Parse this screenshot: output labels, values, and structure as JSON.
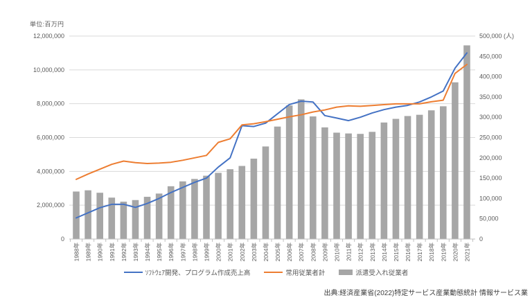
{
  "unit_label": "単位:百万円",
  "source": "出典:経済産業省(2022)特定サービス産業動態統計 情報サービス業",
  "colors": {
    "blue_line": "#4472C4",
    "orange_line": "#ED7D31",
    "gray_bar": "#A6A6A6",
    "gridline": "#D9D9D9",
    "axis_line": "#BFBFBF",
    "axis_text": "#595959"
  },
  "legend": [
    {
      "label": "ｿﾌﾄｳｪｱ開発、プログラム作成売上高",
      "type": "line",
      "color": "#4472C4"
    },
    {
      "label": "常用従業者計",
      "type": "line",
      "color": "#ED7D31"
    },
    {
      "label": "派遣受入れ従業者",
      "type": "bar",
      "color": "#A6A6A6"
    }
  ],
  "chart_data": {
    "type": "combo-bar-line",
    "grid": true,
    "legend_position": "bottom",
    "categories": [
      "1988年",
      "1989年",
      "1990年",
      "1991年",
      "1992年",
      "1993年",
      "1994年",
      "1995年",
      "1996年",
      "1997年",
      "1998年",
      "1999年",
      "2000年",
      "2001年",
      "2002年",
      "2003年",
      "2004年",
      "2005年",
      "2006年",
      "2007年",
      "2008年",
      "2009年",
      "2010年",
      "2011年",
      "2012年",
      "2013年",
      "2014年",
      "2015年",
      "2016年",
      "2017年",
      "2018年",
      "2019年",
      "2020年",
      "2021年"
    ],
    "left_axis": {
      "unit": "百万円",
      "min": 0,
      "max": 12000000,
      "tick_labels_bottom_to_top": [
        "0",
        "2,000,000",
        "4,000,000",
        "6,000,000",
        "8,000,000",
        "10,000,000",
        "12,000,000"
      ]
    },
    "right_axis": {
      "unit": "人",
      "min": 0,
      "max": 500000,
      "tick_labels_bottom_to_top": [
        "0",
        "50,000",
        "100,000",
        "150,000",
        "200,000",
        "250,000",
        "300,000",
        "350,000",
        "400,000",
        "450,000",
        "500,000 (人)"
      ]
    },
    "series": [
      {
        "name": "ｿﾌﾄｳｪｱ開発、プログラム作成売上高",
        "type": "line",
        "axis": "left",
        "color": "#4472C4",
        "values": [
          1250000,
          1550000,
          1850000,
          2050000,
          2050000,
          1870000,
          2100000,
          2400000,
          2750000,
          3050000,
          3350000,
          3600000,
          4250000,
          4800000,
          6700000,
          6650000,
          6850000,
          7400000,
          7950000,
          8150000,
          8100000,
          7300000,
          7150000,
          7000000,
          7200000,
          7450000,
          7650000,
          7800000,
          7900000,
          8100000,
          8400000,
          8750000,
          10100000,
          11000000
        ]
      },
      {
        "name": "常用従業者計",
        "type": "line",
        "axis": "right",
        "color": "#ED7D31",
        "values": [
          147000,
          160000,
          172000,
          184000,
          192000,
          188000,
          186000,
          187000,
          189000,
          194000,
          200000,
          206000,
          238000,
          247000,
          281000,
          284000,
          289000,
          295000,
          301000,
          306000,
          313000,
          318000,
          325000,
          328000,
          327000,
          329000,
          331000,
          333000,
          333000,
          333000,
          338000,
          342000,
          408000,
          430000
        ]
      },
      {
        "name": "派遣受入れ従業者",
        "type": "bar",
        "axis": "right",
        "color": "#A6A6A6",
        "values": [
          117000,
          120000,
          114000,
          102000,
          92000,
          96000,
          104000,
          112000,
          130000,
          142000,
          148000,
          156000,
          163000,
          172000,
          180000,
          198000,
          228000,
          277000,
          329000,
          344000,
          302000,
          275000,
          262000,
          260000,
          259000,
          264000,
          287000,
          296000,
          303000,
          306000,
          317000,
          327000,
          386000,
          477000
        ]
      }
    ]
  }
}
